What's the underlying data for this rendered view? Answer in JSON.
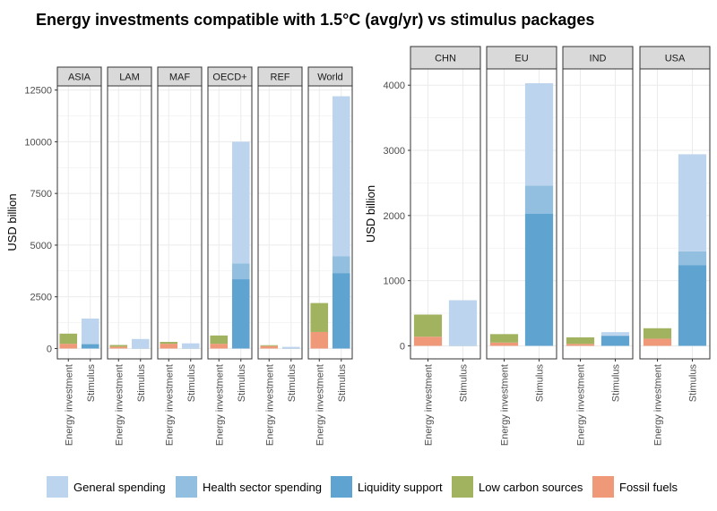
{
  "title": "Energy investments compatible with 1.5°C (avg/yr) vs stimulus packages",
  "colors": {
    "General spending": "#bdd4ee",
    "Health sector spending": "#92bfe0",
    "Liquidity support": "#5fa3d1",
    "Low carbon sources": "#a1b35f",
    "Fossil fuels": "#ef9979"
  },
  "chart_data": [
    {
      "type": "bar",
      "stacked": true,
      "position": "left",
      "ylabel": "USD billion",
      "ylim": [
        -500,
        12700
      ],
      "yticks": [
        0,
        2500,
        5000,
        7500,
        10000,
        12500
      ],
      "ytick_labels": [
        "0",
        "2500",
        "5000",
        "7500",
        "10000",
        "12500"
      ],
      "categories": [
        "Energy investment",
        "Stimulus"
      ],
      "facets": [
        {
          "name": "ASIA",
          "stacks": [
            [
              {
                "series": "Fossil fuels",
                "value": 230
              },
              {
                "series": "Low carbon sources",
                "value": 490
              }
            ],
            [
              {
                "series": "Liquidity support",
                "value": 210
              },
              {
                "series": "Health sector spending",
                "value": 20
              },
              {
                "series": "General spending",
                "value": 1220
              }
            ]
          ]
        },
        {
          "name": "LAM",
          "stacks": [
            [
              {
                "series": "Fossil fuels",
                "value": 90
              },
              {
                "series": "Low carbon sources",
                "value": 80
              }
            ],
            [
              {
                "series": "Liquidity support",
                "value": 0
              },
              {
                "series": "Health sector spending",
                "value": 20
              },
              {
                "series": "General spending",
                "value": 440
              }
            ]
          ]
        },
        {
          "name": "MAF",
          "stacks": [
            [
              {
                "series": "Fossil fuels",
                "value": 230
              },
              {
                "series": "Low carbon sources",
                "value": 90
              }
            ],
            [
              {
                "series": "Liquidity support",
                "value": 0
              },
              {
                "series": "Health sector spending",
                "value": 30
              },
              {
                "series": "General spending",
                "value": 220
              }
            ]
          ]
        },
        {
          "name": "OECD+",
          "stacks": [
            [
              {
                "series": "Fossil fuels",
                "value": 230
              },
              {
                "series": "Low carbon sources",
                "value": 400
              }
            ],
            [
              {
                "series": "Liquidity support",
                "value": 3350
              },
              {
                "series": "Health sector spending",
                "value": 770
              },
              {
                "series": "General spending",
                "value": 5880
              }
            ]
          ]
        },
        {
          "name": "REF",
          "stacks": [
            [
              {
                "series": "Fossil fuels",
                "value": 120
              },
              {
                "series": "Low carbon sources",
                "value": 40
              }
            ],
            [
              {
                "series": "Liquidity support",
                "value": 0
              },
              {
                "series": "Health sector spending",
                "value": 20
              },
              {
                "series": "General spending",
                "value": 60
              }
            ]
          ]
        },
        {
          "name": "World",
          "stacks": [
            [
              {
                "series": "Fossil fuels",
                "value": 800
              },
              {
                "series": "Low carbon sources",
                "value": 1400
              }
            ],
            [
              {
                "series": "Liquidity support",
                "value": 3650
              },
              {
                "series": "Health sector spending",
                "value": 820
              },
              {
                "series": "General spending",
                "value": 7730
              }
            ]
          ]
        }
      ]
    },
    {
      "type": "bar",
      "stacked": true,
      "position": "right",
      "ylabel": "USD billion",
      "ylim": [
        -200,
        4250
      ],
      "yticks": [
        0,
        1000,
        2000,
        3000,
        4000
      ],
      "ytick_labels": [
        "0",
        "1000",
        "2000",
        "3000",
        "4000"
      ],
      "categories": [
        "Energy investment",
        "Stimulus"
      ],
      "facets": [
        {
          "name": "CHN",
          "stacks": [
            [
              {
                "series": "Fossil fuels",
                "value": 140
              },
              {
                "series": "Low carbon sources",
                "value": 340
              }
            ],
            [
              {
                "series": "Liquidity support",
                "value": 0
              },
              {
                "series": "Health sector spending",
                "value": 10
              },
              {
                "series": "General spending",
                "value": 690
              }
            ]
          ]
        },
        {
          "name": "EU",
          "stacks": [
            [
              {
                "series": "Fossil fuels",
                "value": 50
              },
              {
                "series": "Low carbon sources",
                "value": 130
              }
            ],
            [
              {
                "series": "Liquidity support",
                "value": 2030
              },
              {
                "series": "Health sector spending",
                "value": 430
              },
              {
                "series": "General spending",
                "value": 1570
              }
            ]
          ]
        },
        {
          "name": "IND",
          "stacks": [
            [
              {
                "series": "Fossil fuels",
                "value": 30
              },
              {
                "series": "Low carbon sources",
                "value": 100
              }
            ],
            [
              {
                "series": "Liquidity support",
                "value": 150
              },
              {
                "series": "Health sector spending",
                "value": 10
              },
              {
                "series": "General spending",
                "value": 50
              }
            ]
          ]
        },
        {
          "name": "USA",
          "stacks": [
            [
              {
                "series": "Fossil fuels",
                "value": 110
              },
              {
                "series": "Low carbon sources",
                "value": 160
              }
            ],
            [
              {
                "series": "Liquidity support",
                "value": 1240
              },
              {
                "series": "Health sector spending",
                "value": 210
              },
              {
                "series": "General spending",
                "value": 1490
              }
            ]
          ]
        }
      ]
    }
  ],
  "legend": {
    "position": "bottom",
    "items": [
      "General spending",
      "Health sector spending",
      "Liquidity support",
      "Low carbon sources",
      "Fossil fuels"
    ]
  }
}
